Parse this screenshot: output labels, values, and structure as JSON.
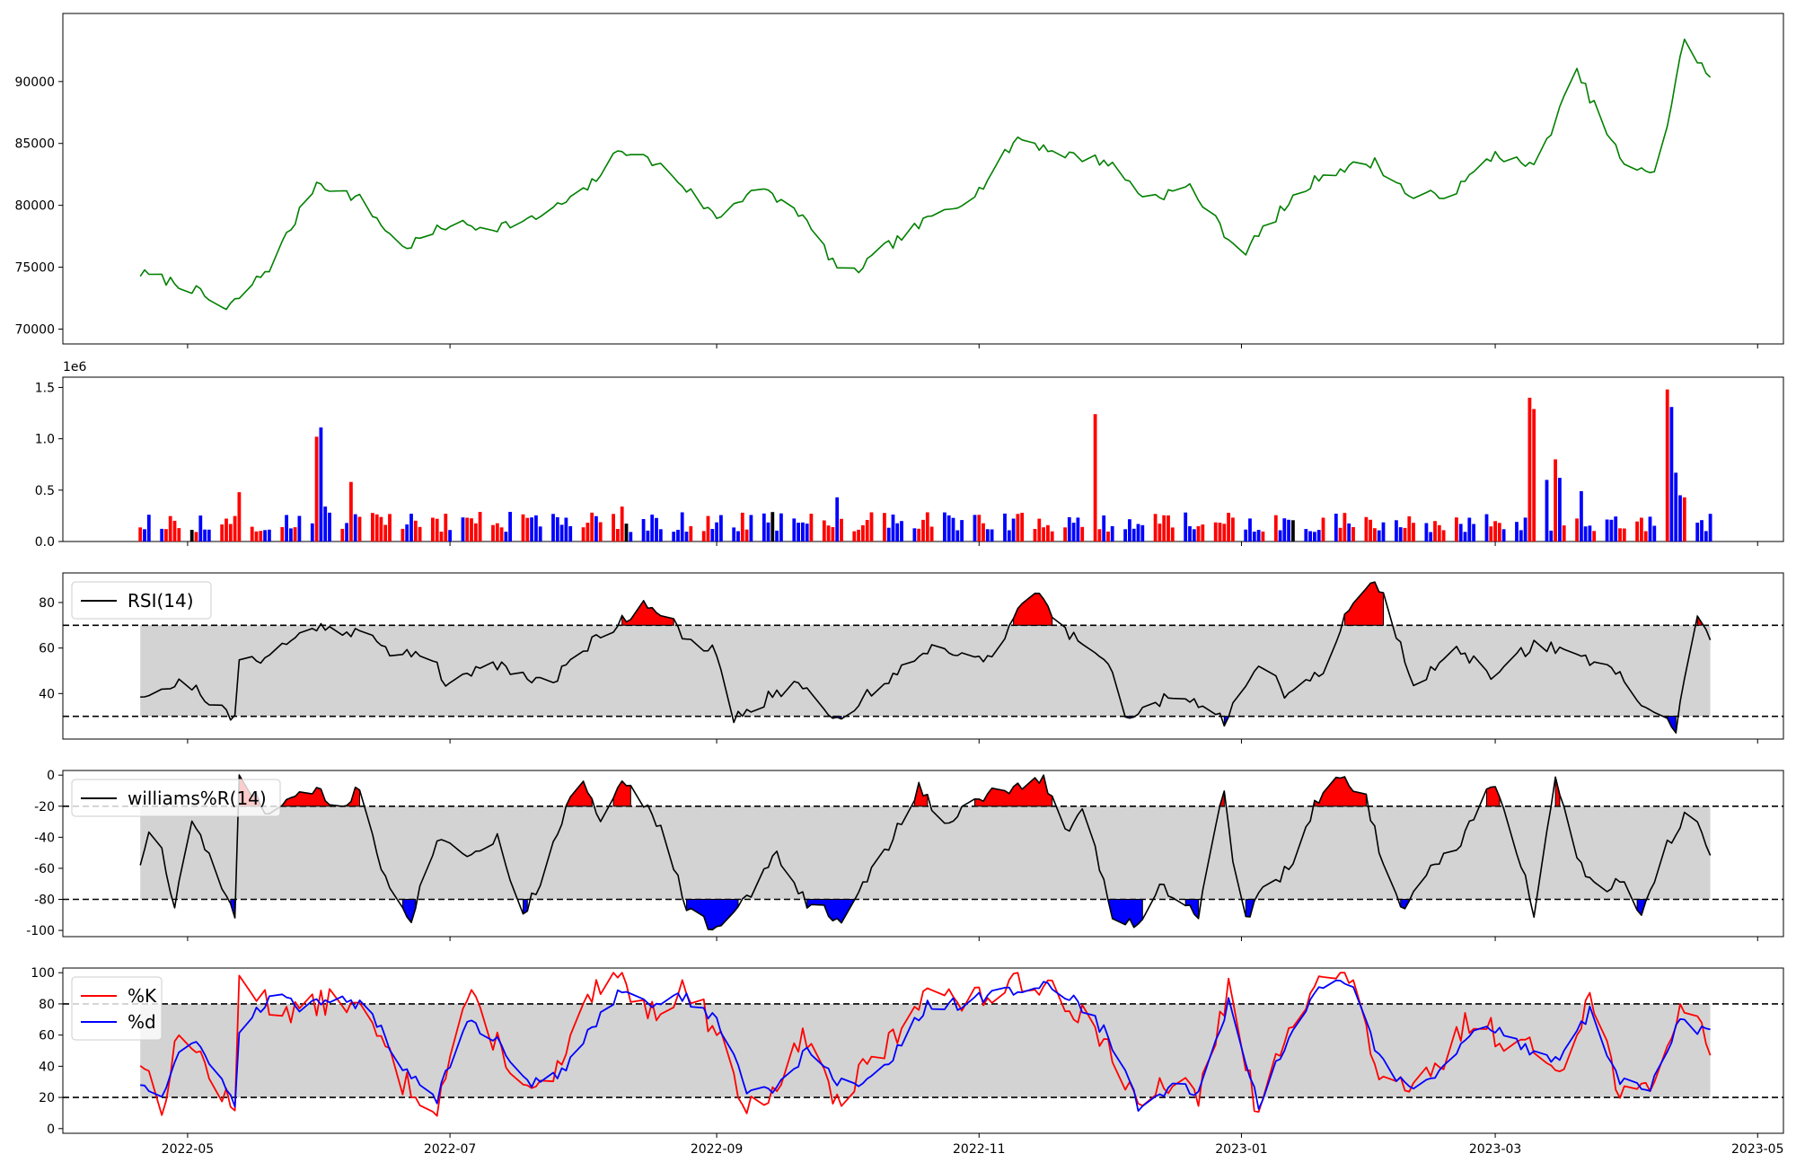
{
  "chart_data": [
    {
      "panel": "price",
      "type": "line",
      "ylim": [
        68800,
        95500
      ],
      "yticks": [
        70000,
        75000,
        80000,
        85000,
        90000
      ],
      "x_dates": [
        "2022-04-20",
        "2022-05-01",
        "2022-05-10",
        "2022-05-20",
        "2022-05-31",
        "2022-06-10",
        "2022-06-20",
        "2022-07-01",
        "2022-07-10",
        "2022-07-20",
        "2022-08-01",
        "2022-08-10",
        "2022-08-20",
        "2022-09-01",
        "2022-09-10",
        "2022-09-20",
        "2022-10-01",
        "2022-10-10",
        "2022-10-20",
        "2022-11-01",
        "2022-11-10",
        "2022-11-20",
        "2022-12-01",
        "2022-12-10",
        "2022-12-20",
        "2023-01-01",
        "2023-01-10",
        "2023-01-20",
        "2023-02-01",
        "2023-02-10",
        "2023-02-20",
        "2023-03-01",
        "2023-03-10",
        "2023-03-20",
        "2023-04-01",
        "2023-04-08",
        "2023-04-14",
        "2023-04-20"
      ],
      "series": [
        {
          "color": "#008000",
          "values": [
            74500,
            73500,
            71500,
            75000,
            81900,
            80500,
            76500,
            78500,
            78200,
            78800,
            81000,
            84600,
            83000,
            79000,
            81500,
            79500,
            74000,
            76500,
            78800,
            81200,
            85500,
            84200,
            83500,
            80500,
            81500,
            76000,
            79500,
            82600,
            83500,
            80500,
            81200,
            84200,
            83000,
            90800,
            82500,
            83000,
            93500,
            90200
          ]
        }
      ]
    },
    {
      "panel": "volume",
      "type": "bar",
      "ylim": [
        0,
        1600000
      ],
      "yticks": [
        0,
        500000,
        1000000,
        1500000
      ],
      "ytick_labels": [
        "0.0",
        "0.5",
        "1.0",
        "1.5"
      ],
      "scale_label": "1e6",
      "seed": 97,
      "spikes": [
        {
          "date": "2022-05-13",
          "value": 480000,
          "color": "#ff0000"
        },
        {
          "date": "2022-05-31",
          "value": 1020000,
          "color": "#ff0000"
        },
        {
          "date": "2022-06-01",
          "value": 1110000,
          "color": "#0000ff"
        },
        {
          "date": "2022-06-02",
          "value": 340000,
          "color": "#0000ff"
        },
        {
          "date": "2022-06-08",
          "value": 580000,
          "color": "#ff0000"
        },
        {
          "date": "2022-08-10",
          "value": 340000,
          "color": "#ff0000"
        },
        {
          "date": "2022-09-29",
          "value": 430000,
          "color": "#0000ff"
        },
        {
          "date": "2022-11-28",
          "value": 1240000,
          "color": "#ff0000"
        },
        {
          "date": "2023-03-09",
          "value": 1400000,
          "color": "#ff0000"
        },
        {
          "date": "2023-03-10",
          "value": 1290000,
          "color": "#ff0000"
        },
        {
          "date": "2023-03-13",
          "value": 600000,
          "color": "#0000ff"
        },
        {
          "date": "2023-03-15",
          "value": 800000,
          "color": "#ff0000"
        },
        {
          "date": "2023-03-16",
          "value": 620000,
          "color": "#0000ff"
        },
        {
          "date": "2023-03-21",
          "value": 490000,
          "color": "#0000ff"
        },
        {
          "date": "2023-04-10",
          "value": 1480000,
          "color": "#ff0000"
        },
        {
          "date": "2023-04-11",
          "value": 1310000,
          "color": "#0000ff"
        },
        {
          "date": "2023-04-12",
          "value": 670000,
          "color": "#0000ff"
        },
        {
          "date": "2023-04-13",
          "value": 450000,
          "color": "#0000ff"
        },
        {
          "date": "2023-04-14",
          "value": 430000,
          "color": "#ff0000"
        }
      ]
    },
    {
      "panel": "rsi",
      "type": "area",
      "ylim": [
        20,
        93
      ],
      "yticks": [
        40,
        60,
        80
      ],
      "upper": 70,
      "lower": 30,
      "legend": "RSI(14)",
      "x_dates": [
        "2022-04-20",
        "2022-05-01",
        "2022-05-12",
        "2022-05-13",
        "2022-05-20",
        "2022-05-31",
        "2022-06-05",
        "2022-06-10",
        "2022-06-18",
        "2022-06-25",
        "2022-07-01",
        "2022-07-10",
        "2022-07-18",
        "2022-07-25",
        "2022-08-01",
        "2022-08-05",
        "2022-08-10",
        "2022-08-15",
        "2022-08-20",
        "2022-08-25",
        "2022-09-01",
        "2022-09-05",
        "2022-09-10",
        "2022-09-20",
        "2022-09-30",
        "2022-10-05",
        "2022-10-12",
        "2022-10-20",
        "2022-10-28",
        "2022-11-05",
        "2022-11-12",
        "2022-11-15",
        "2022-11-20",
        "2022-11-30",
        "2022-12-05",
        "2022-12-15",
        "2022-12-25",
        "2022-12-28",
        "2023-01-05",
        "2023-01-12",
        "2023-01-20",
        "2023-01-25",
        "2023-01-30",
        "2023-02-03",
        "2023-02-10",
        "2023-02-20",
        "2023-03-01",
        "2023-03-10",
        "2023-03-20",
        "2023-03-31",
        "2023-04-05",
        "2023-04-12",
        "2023-04-17",
        "2023-04-20"
      ],
      "series": [
        {
          "name": "RSI(14)",
          "color": "#000000",
          "values": [
            40,
            45,
            28,
            54,
            57,
            70,
            68,
            68,
            56,
            60,
            42,
            55,
            48,
            45,
            60,
            66,
            72,
            80,
            76,
            62,
            58,
            28,
            35,
            45,
            28,
            38,
            48,
            60,
            58,
            56,
            82,
            85,
            68,
            58,
            30,
            38,
            33,
            28,
            55,
            38,
            50,
            75,
            88,
            84,
            45,
            58,
            48,
            62,
            58,
            46,
            33,
            25,
            76,
            65
          ]
        }
      ]
    },
    {
      "panel": "williams",
      "type": "area",
      "ylim": [
        -104,
        3
      ],
      "yticks": [
        -100,
        -80,
        -60,
        -40,
        -20,
        0
      ],
      "upper": -20,
      "lower": -80,
      "legend": "williams%R(14)",
      "x_dates": [
        "2022-04-20",
        "2022-04-23",
        "2022-04-28",
        "2022-05-02",
        "2022-05-10",
        "2022-05-12",
        "2022-05-13",
        "2022-05-20",
        "2022-05-31",
        "2022-06-05",
        "2022-06-10",
        "2022-06-15",
        "2022-06-22",
        "2022-06-28",
        "2022-07-05",
        "2022-07-12",
        "2022-07-18",
        "2022-07-22",
        "2022-07-27",
        "2022-08-01",
        "2022-08-05",
        "2022-08-10",
        "2022-08-15",
        "2022-08-20",
        "2022-08-25",
        "2022-09-01",
        "2022-09-08",
        "2022-09-15",
        "2022-09-22",
        "2022-10-01",
        "2022-10-05",
        "2022-10-12",
        "2022-10-18",
        "2022-10-24",
        "2022-10-30",
        "2022-11-05",
        "2022-11-12",
        "2022-11-16",
        "2022-11-21",
        "2022-11-26",
        "2022-12-02",
        "2022-12-08",
        "2022-12-13",
        "2022-12-18",
        "2022-12-22",
        "2022-12-28",
        "2023-01-01",
        "2023-01-05",
        "2023-01-12",
        "2023-01-18",
        "2023-01-24",
        "2023-01-30",
        "2023-02-03",
        "2023-02-08",
        "2023-02-13",
        "2023-02-20",
        "2023-02-25",
        "2023-03-01",
        "2023-03-06",
        "2023-03-10",
        "2023-03-15",
        "2023-03-21",
        "2023-03-26",
        "2023-03-31",
        "2023-04-04",
        "2023-04-10",
        "2023-04-15",
        "2023-04-20"
      ],
      "series": [
        {
          "name": "williams%R(14)",
          "color": "#000000",
          "values": [
            -56,
            -26,
            -86,
            -28,
            -78,
            -94,
            -2,
            -25,
            -8,
            -22,
            -8,
            -60,
            -92,
            -40,
            -50,
            -40,
            -90,
            -70,
            -28,
            -2,
            -30,
            0,
            -18,
            -40,
            -86,
            -100,
            -80,
            -50,
            -82,
            -94,
            -72,
            -40,
            -8,
            -30,
            -20,
            -10,
            -8,
            -2,
            -35,
            -22,
            -93,
            -95,
            -70,
            -82,
            -90,
            -8,
            -97,
            -78,
            -60,
            -20,
            -2,
            -15,
            -58,
            -88,
            -62,
            -48,
            -20,
            -5,
            -48,
            -88,
            -4,
            -60,
            -72,
            -68,
            -90,
            -45,
            -20,
            -48
          ]
        }
      ]
    },
    {
      "panel": "stochastic",
      "type": "line",
      "ylim": [
        -3,
        103
      ],
      "yticks": [
        0,
        20,
        40,
        60,
        80,
        100
      ],
      "upper": 80,
      "lower": 20,
      "seed": 13,
      "x_dates": [
        "2022-04-20",
        "2022-04-25",
        "2022-04-30",
        "2022-05-05",
        "2022-05-12",
        "2022-05-13",
        "2022-05-20",
        "2022-05-28",
        "2022-06-05",
        "2022-06-12",
        "2022-06-20",
        "2022-06-28",
        "2022-07-05",
        "2022-07-12",
        "2022-07-20",
        "2022-07-27",
        "2022-08-03",
        "2022-08-10",
        "2022-08-17",
        "2022-08-24",
        "2022-09-01",
        "2022-09-08",
        "2022-09-15",
        "2022-09-22",
        "2022-09-29",
        "2022-10-06",
        "2022-10-13",
        "2022-10-20",
        "2022-10-27",
        "2022-11-03",
        "2022-11-10",
        "2022-11-17",
        "2022-11-24",
        "2022-12-01",
        "2022-12-08",
        "2022-12-15",
        "2022-12-22",
        "2022-12-29",
        "2023-01-05",
        "2023-01-12",
        "2023-01-19",
        "2023-01-26",
        "2023-02-02",
        "2023-02-09",
        "2023-02-16",
        "2023-02-23",
        "2023-03-02",
        "2023-03-09",
        "2023-03-16",
        "2023-03-23",
        "2023-03-30",
        "2023-04-06",
        "2023-04-13",
        "2023-04-20"
      ],
      "series": [
        {
          "name": "%K",
          "color": "#ff0000",
          "values": [
            45,
            15,
            70,
            40,
            8,
            98,
            80,
            75,
            85,
            70,
            30,
            15,
            85,
            55,
            20,
            40,
            85,
            95,
            75,
            90,
            65,
            10,
            30,
            60,
            15,
            40,
            60,
            95,
            80,
            85,
            92,
            95,
            75,
            55,
            10,
            30,
            20,
            90,
            5,
            70,
            95,
            98,
            35,
            20,
            40,
            70,
            60,
            50,
            40,
            85,
            25,
            20,
            80,
            55
          ]
        },
        {
          "name": "%d",
          "color": "#0000ff",
          "values": [
            30,
            20,
            55,
            50,
            15,
            60,
            85,
            78,
            82,
            78,
            40,
            20,
            72,
            55,
            30,
            35,
            65,
            90,
            80,
            85,
            70,
            25,
            25,
            50,
            30,
            30,
            50,
            80,
            80,
            85,
            90,
            92,
            80,
            60,
            15,
            25,
            25,
            80,
            15,
            60,
            90,
            95,
            45,
            25,
            35,
            60,
            65,
            50,
            45,
            75,
            30,
            25,
            70,
            60
          ]
        }
      ]
    }
  ],
  "x_axis": {
    "ticks": [
      {
        "date": "2022-05-01",
        "label": "2022-05"
      },
      {
        "date": "2022-07-01",
        "label": "2022-07"
      },
      {
        "date": "2022-09-01",
        "label": "2022-09"
      },
      {
        "date": "2022-11-01",
        "label": "2022-11"
      },
      {
        "date": "2023-01-01",
        "label": "2023-01"
      },
      {
        "date": "2023-03-01",
        "label": "2023-03"
      },
      {
        "date": "2023-05-01",
        "label": "2023-05"
      }
    ],
    "range": [
      "2022-04-02",
      "2023-05-07"
    ],
    "data_range": [
      "2022-04-20",
      "2023-04-20"
    ]
  },
  "colors": {
    "band_fill": "#d3d3d3",
    "overbought": "#ff0000",
    "oversold": "#0000ff",
    "price": "#008000"
  }
}
